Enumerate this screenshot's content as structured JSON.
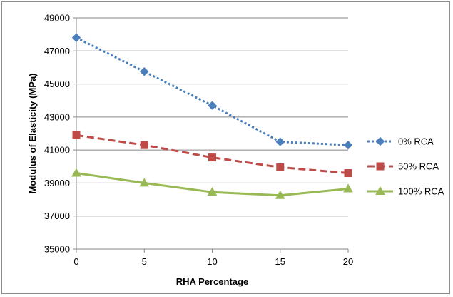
{
  "chart_data": {
    "type": "line",
    "title": "",
    "xlabel": "RHA Percentage",
    "ylabel": "Modulus of Elasticity (MPa)",
    "x": [
      0,
      5,
      10,
      15,
      20
    ],
    "x_ticks": [
      "0",
      "5",
      "10",
      "15",
      "20"
    ],
    "xlim": [
      0,
      20
    ],
    "ylim": [
      35000,
      49000
    ],
    "y_ticks": [
      "35000",
      "37000",
      "39000",
      "41000",
      "43000",
      "45000",
      "47000",
      "49000"
    ],
    "grid": true,
    "legend_position": "right",
    "series": [
      {
        "name": "0% RCA",
        "values": [
          47800,
          45750,
          43700,
          41500,
          41300
        ],
        "color": "#4a7ebb",
        "marker": "diamond",
        "line_style": "dotted"
      },
      {
        "name": "50% RCA",
        "values": [
          41900,
          41300,
          40550,
          39950,
          39600
        ],
        "color": "#be4b48",
        "marker": "square",
        "line_style": "dashed"
      },
      {
        "name": "100% RCA",
        "values": [
          39600,
          39000,
          38450,
          38250,
          38650
        ],
        "color": "#98b954",
        "marker": "triangle",
        "line_style": "solid"
      }
    ]
  }
}
